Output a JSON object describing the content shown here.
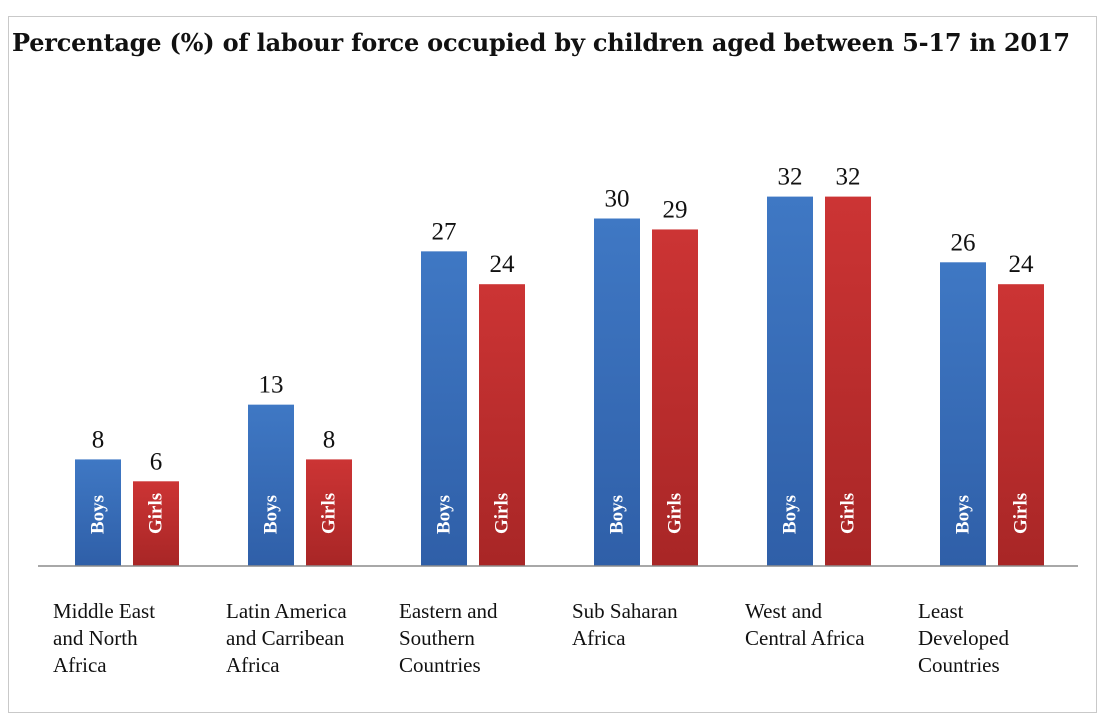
{
  "chart_data": {
    "type": "bar",
    "title": "Percentage (%) of labour force occupied by children aged between 5-17 in 2017",
    "categories": [
      "Middle East and North Africa",
      "Latin America and Carribean Africa",
      "Eastern and Southern Countries",
      "Sub Saharan Africa",
      "West and Central Africa",
      "Least Developed Countries"
    ],
    "category_lines": [
      [
        "Middle East",
        "and North",
        "Africa"
      ],
      [
        "Latin America",
        "and Carribean",
        "Africa"
      ],
      [
        "Eastern and",
        "Southern",
        "Countries"
      ],
      [
        "Sub Saharan",
        "Africa"
      ],
      [
        "West and",
        "Central Africa"
      ],
      [
        "Least",
        "Developed",
        "Countries"
      ]
    ],
    "series": [
      {
        "name": "Boys",
        "values": [
          8,
          13,
          27,
          30,
          32,
          26
        ],
        "color": "#3d72bd"
      },
      {
        "name": "Girls",
        "values": [
          6,
          8,
          24,
          29,
          32,
          24
        ],
        "color": "#c63133"
      }
    ],
    "xlabel": "",
    "ylabel": "",
    "ylim": [
      0,
      32
    ],
    "grid": false,
    "legend": "none",
    "data_labels": true,
    "in_bar_labels": true
  }
}
